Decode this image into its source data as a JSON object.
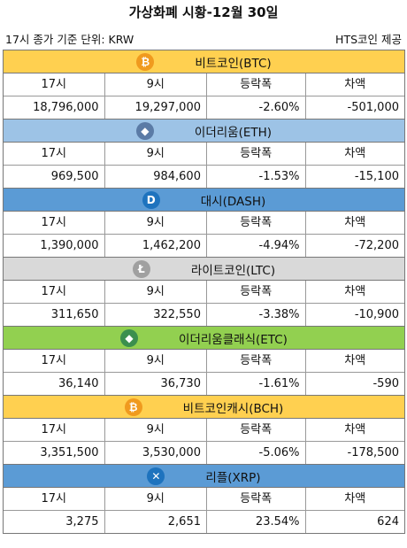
{
  "title": "가상화폐 시황-12월 30일",
  "subtitle_left": "17시 종가 기준   단위: KRW",
  "subtitle_right": "HTS코인 제공",
  "headers": [
    "17시",
    "9시",
    "등락폭",
    "차액"
  ],
  "coins": [
    {
      "name": "비트코인(BTC)",
      "icon": "bitcoin-icon",
      "glyph": "₿",
      "color": "#FFD050",
      "icon_bg": "#F09A1E",
      "values": [
        "18,796,000",
        "19,297,000",
        "-2.60%",
        "-501,000"
      ]
    },
    {
      "name": "이더리움(ETH)",
      "icon": "ethereum-icon",
      "glyph": "◆",
      "color": "#9DC3E6",
      "icon_bg": "#5B7BA6",
      "values": [
        "969,500",
        "984,600",
        "-1.53%",
        "-15,100"
      ]
    },
    {
      "name": "대시(DASH)",
      "icon": "dash-icon",
      "glyph": "D",
      "color": "#5B9BD5",
      "icon_bg": "#1E73BE",
      "values": [
        "1,390,000",
        "1,462,200",
        "-4.94%",
        "-72,200"
      ]
    },
    {
      "name": "라이트코인(LTC)",
      "icon": "litecoin-icon",
      "glyph": "Ł",
      "color": "#D9D9D9",
      "icon_bg": "#A0A0A0",
      "values": [
        "311,650",
        "322,550",
        "-3.38%",
        "-10,900"
      ]
    },
    {
      "name": "이더리움클래식(ETC)",
      "icon": "ethereum-classic-icon",
      "glyph": "◆",
      "color": "#92D050",
      "icon_bg": "#3B8F4E",
      "values": [
        "36,140",
        "36,730",
        "-1.61%",
        "-590"
      ]
    },
    {
      "name": "비트코인캐시(BCH)",
      "icon": "bitcoin-cash-icon",
      "glyph": "₿",
      "color": "#FFD050",
      "icon_bg": "#F09A1E",
      "values": [
        "3,351,500",
        "3,530,000",
        "-5.06%",
        "-178,500"
      ]
    },
    {
      "name": "리플(XRP)",
      "icon": "ripple-icon",
      "glyph": "✕",
      "color": "#5B9BD5",
      "icon_bg": "#1E73BE",
      "values": [
        "3,275",
        "2,651",
        "23.54%",
        "624"
      ]
    }
  ]
}
